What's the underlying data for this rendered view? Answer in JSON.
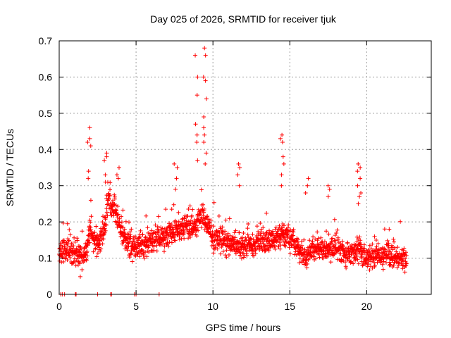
{
  "chart_data": {
    "type": "scatter",
    "title": "Day 025 of 2026, SRMTID for receiver tjuk",
    "xlabel": "GPS time / hours",
    "ylabel": "SRMTID / TECUs",
    "xlim": [
      0,
      24.2
    ],
    "ylim": [
      0,
      0.7
    ],
    "x_ticks": [
      "0",
      "5",
      "10",
      "15",
      "20"
    ],
    "y_ticks": [
      "0",
      "0.1",
      "0.2",
      "0.3",
      "0.4",
      "0.5",
      "0.6",
      "0.7"
    ],
    "grid": true,
    "marker": "+",
    "color": "#ff0000",
    "series": [
      {
        "name": "SRMTID",
        "envelope": {
          "x": [
            0,
            0.5,
            1.0,
            1.5,
            1.8,
            2.0,
            2.3,
            2.6,
            3.0,
            3.2,
            3.5,
            3.8,
            4.2,
            4.6,
            5.0,
            5.5,
            6.0,
            6.5,
            7.0,
            7.5,
            8.0,
            8.5,
            9.0,
            9.3,
            9.6,
            10.0,
            10.5,
            11.0,
            11.5,
            12.0,
            12.5,
            13.0,
            13.5,
            14.0,
            14.5,
            15.0,
            15.5,
            16.0,
            16.5,
            17.0,
            17.5,
            18.0,
            18.5,
            19.0,
            19.5,
            20.0,
            20.5,
            21.0,
            21.5,
            22.0,
            22.6
          ],
          "mean": [
            0.12,
            0.12,
            0.11,
            0.1,
            0.12,
            0.18,
            0.15,
            0.14,
            0.2,
            0.26,
            0.24,
            0.2,
            0.16,
            0.14,
            0.13,
            0.14,
            0.15,
            0.15,
            0.16,
            0.17,
            0.19,
            0.18,
            0.2,
            0.22,
            0.19,
            0.15,
            0.15,
            0.14,
            0.14,
            0.13,
            0.14,
            0.14,
            0.15,
            0.15,
            0.17,
            0.15,
            0.13,
            0.1,
            0.13,
            0.13,
            0.12,
            0.13,
            0.11,
            0.11,
            0.13,
            0.1,
            0.1,
            0.11,
            0.11,
            0.1,
            0.1
          ]
        },
        "peaks": [
          {
            "x": 1.95,
            "values": [
              0.46,
              0.43,
              0.42,
              0.41,
              0.34,
              0.32
            ]
          },
          {
            "x": 3.05,
            "values": [
              0.39,
              0.38,
              0.37,
              0.33,
              0.31
            ]
          },
          {
            "x": 3.8,
            "values": [
              0.35,
              0.33,
              0.32
            ]
          },
          {
            "x": 7.6,
            "values": [
              0.36,
              0.35,
              0.32,
              0.29
            ]
          },
          {
            "x": 8.9,
            "values": [
              0.66,
              0.6,
              0.55,
              0.47,
              0.44,
              0.42,
              0.37
            ]
          },
          {
            "x": 9.5,
            "values": [
              0.68,
              0.66,
              0.6,
              0.59,
              0.54,
              0.49,
              0.46,
              0.44,
              0.42,
              0.39,
              0.36
            ]
          },
          {
            "x": 11.7,
            "values": [
              0.36,
              0.35,
              0.33,
              0.3
            ]
          },
          {
            "x": 14.5,
            "values": [
              0.44,
              0.43,
              0.42,
              0.38,
              0.36,
              0.33,
              0.3
            ]
          },
          {
            "x": 16.1,
            "values": [
              0.32,
              0.3,
              0.28
            ]
          },
          {
            "x": 17.5,
            "values": [
              0.3,
              0.29,
              0.27
            ]
          },
          {
            "x": 19.5,
            "values": [
              0.36,
              0.35,
              0.34,
              0.32,
              0.3,
              0.28,
              0.27,
              0.25
            ]
          }
        ],
        "zero_points_x": [
          0.1,
          0.2,
          0.35,
          1.05,
          1.1,
          2.5,
          3.35,
          3.4,
          4.9,
          5.0,
          6.5
        ]
      }
    ]
  }
}
